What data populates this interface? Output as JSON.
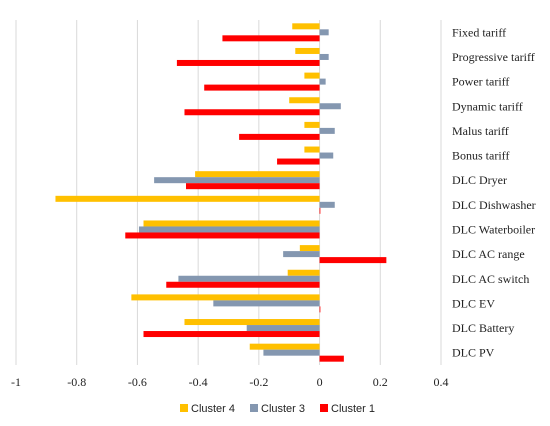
{
  "colors": {
    "cluster4": "#FFC000",
    "cluster3": "#8497B0",
    "cluster1": "#FF0000"
  },
  "chart_data": {
    "type": "bar",
    "orientation": "horizontal",
    "categories": [
      "Fixed tariff",
      "Progressive tariff",
      "Power tariff",
      "Dynamic tariff",
      "Malus tariff",
      "Bonus tariff",
      "DLC Dryer",
      "DLC Dishwasher",
      "DLC Waterboiler",
      "DLC AC range",
      "DLC AC switch",
      "DLC EV",
      "DLC Battery",
      "DLC PV"
    ],
    "series": [
      {
        "name": "Cluster 4",
        "color": "#FFC000",
        "values": [
          -0.09,
          -0.08,
          -0.05,
          -0.1,
          -0.05,
          -0.05,
          -0.41,
          -0.87,
          -0.58,
          -0.065,
          -0.105,
          -0.62,
          -0.445,
          -0.23
        ]
      },
      {
        "name": "Cluster 3",
        "color": "#8497B0",
        "values": [
          0.03,
          0.03,
          0.02,
          0.07,
          0.05,
          0.045,
          -0.545,
          0.05,
          -0.595,
          -0.12,
          -0.465,
          -0.35,
          -0.24,
          -0.185
        ]
      },
      {
        "name": "Cluster 1",
        "color": "#FF0000",
        "values": [
          -0.32,
          -0.47,
          -0.38,
          -0.445,
          -0.265,
          -0.14,
          -0.44,
          0.0,
          -0.64,
          0.22,
          -0.505,
          0.0,
          -0.58,
          0.08
        ]
      }
    ],
    "xlim": [
      -1,
      0.4
    ],
    "xticks": [
      -1,
      -0.8,
      -0.6,
      -0.4,
      -0.2,
      0,
      0.2,
      0.4
    ],
    "xtick_labels": [
      "-1",
      "-0.8",
      "-0.6",
      "-0.4",
      "-0.2",
      "0",
      "0.2",
      "0.4"
    ],
    "grid": "vertical",
    "legend": {
      "position": "bottom",
      "order": [
        "Cluster 4",
        "Cluster 3",
        "Cluster 1"
      ]
    }
  }
}
